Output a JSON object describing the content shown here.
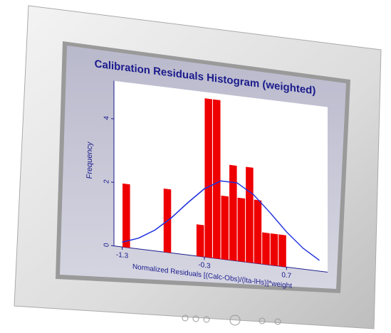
{
  "chart_data": {
    "type": "histogram",
    "title": "Calibration Residuals Histogram (weighted)",
    "x_label": "Normalized Residuals [(Calc-Obs)/(lta-lHs)]*weight",
    "y_label": "Frequency",
    "bins": [
      -1.3,
      -1.2,
      -1.1,
      -1.0,
      -0.9,
      -0.8,
      -0.7,
      -0.6,
      -0.5,
      -0.4,
      -0.3,
      -0.2,
      -0.1,
      0.0,
      0.1,
      0.2,
      0.3,
      0.4,
      0.5,
      0.6,
      0.7
    ],
    "values": [
      2,
      0,
      0,
      0,
      0,
      2,
      0,
      0,
      0,
      1,
      5,
      5,
      2,
      3,
      2,
      3,
      2,
      1,
      1,
      1
    ],
    "color": "#ee0000",
    "line": {
      "x": [
        -1.3,
        -1.1,
        -0.9,
        -0.7,
        -0.5,
        -0.3,
        -0.1,
        0.1,
        0.3,
        0.5,
        0.7,
        0.9,
        1.1
      ],
      "values": [
        0.15,
        0.34,
        0.66,
        1.11,
        1.65,
        2.15,
        2.46,
        2.46,
        2.15,
        1.65,
        1.11,
        0.66,
        0.34
      ],
      "color": "#2233dd"
    },
    "xlim": [
      -1.4,
      1.2
    ],
    "ylim": [
      0,
      5.2
    ],
    "xticks": [
      -1.3,
      -0.3,
      0.7
    ],
    "yticks": [
      0,
      2,
      4
    ]
  }
}
